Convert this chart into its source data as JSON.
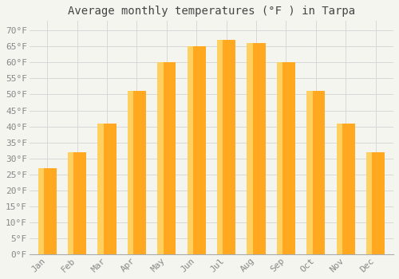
{
  "title": "Average monthly temperatures (°F ) in Tarpa",
  "months": [
    "Jan",
    "Feb",
    "Mar",
    "Apr",
    "May",
    "Jun",
    "Jul",
    "Aug",
    "Sep",
    "Oct",
    "Nov",
    "Dec"
  ],
  "values": [
    27,
    32,
    41,
    51,
    60,
    65,
    67,
    66,
    60,
    51,
    41,
    32
  ],
  "bar_color_main": "#FFA820",
  "bar_color_light": "#FFD060",
  "background_color": "#f5f5f0",
  "plot_bg_color": "#f5f5f0",
  "grid_color": "#d8d8d8",
  "tick_color": "#888888",
  "title_color": "#444444",
  "yticks": [
    0,
    5,
    10,
    15,
    20,
    25,
    30,
    35,
    40,
    45,
    50,
    55,
    60,
    65,
    70
  ],
  "ylim": [
    0,
    73
  ],
  "title_fontsize": 10,
  "tick_fontsize": 8
}
